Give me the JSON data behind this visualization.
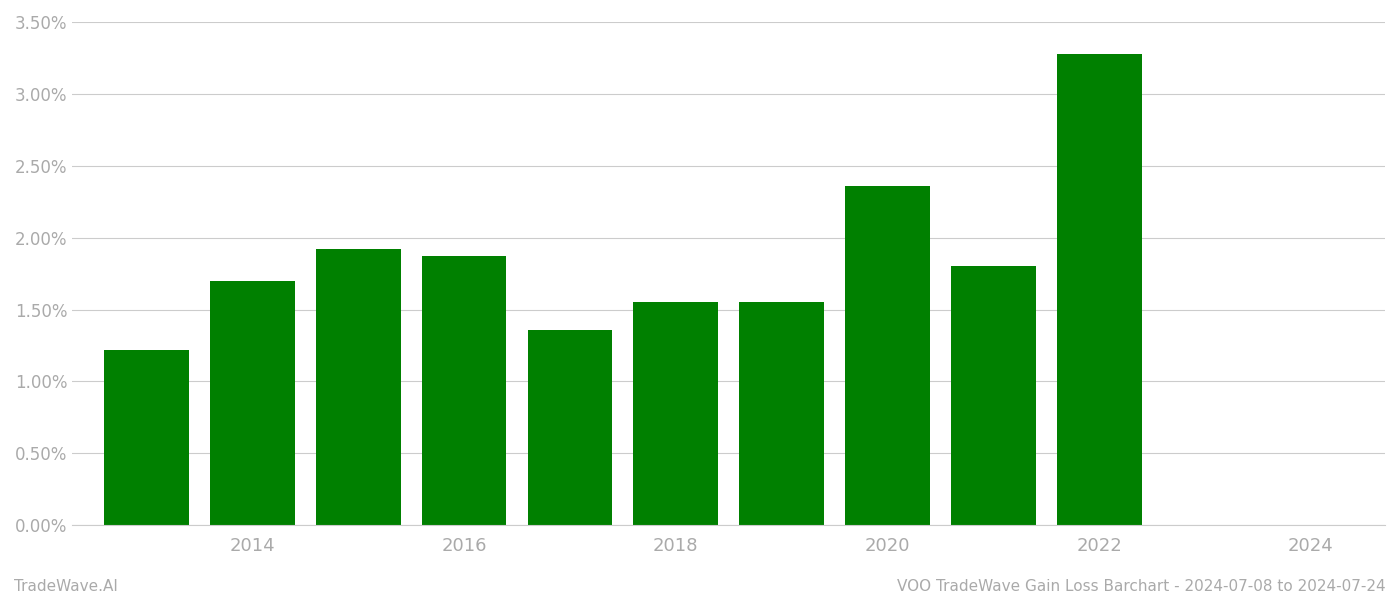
{
  "years": [
    2013,
    2014,
    2015,
    2016,
    2017,
    2018,
    2019,
    2020,
    2021,
    2022,
    2023
  ],
  "values": [
    0.0122,
    0.017,
    0.0192,
    0.0187,
    0.0136,
    0.0155,
    0.0155,
    0.0236,
    0.018,
    0.0328,
    0.0
  ],
  "bar_color": "#008000",
  "background_color": "#ffffff",
  "grid_color": "#cccccc",
  "ylim": [
    0,
    0.035
  ],
  "yticks": [
    0.0,
    0.005,
    0.01,
    0.015,
    0.02,
    0.025,
    0.03,
    0.035
  ],
  "xticks": [
    2014,
    2016,
    2018,
    2020,
    2022,
    2024
  ],
  "xlim": [
    2012.3,
    2024.7
  ],
  "bar_width": 0.8,
  "footer_left": "TradeWave.AI",
  "footer_right": "VOO TradeWave Gain Loss Barchart - 2024-07-08 to 2024-07-24",
  "footer_fontsize": 11,
  "tick_label_color": "#aaaaaa",
  "tick_fontsize": 13
}
